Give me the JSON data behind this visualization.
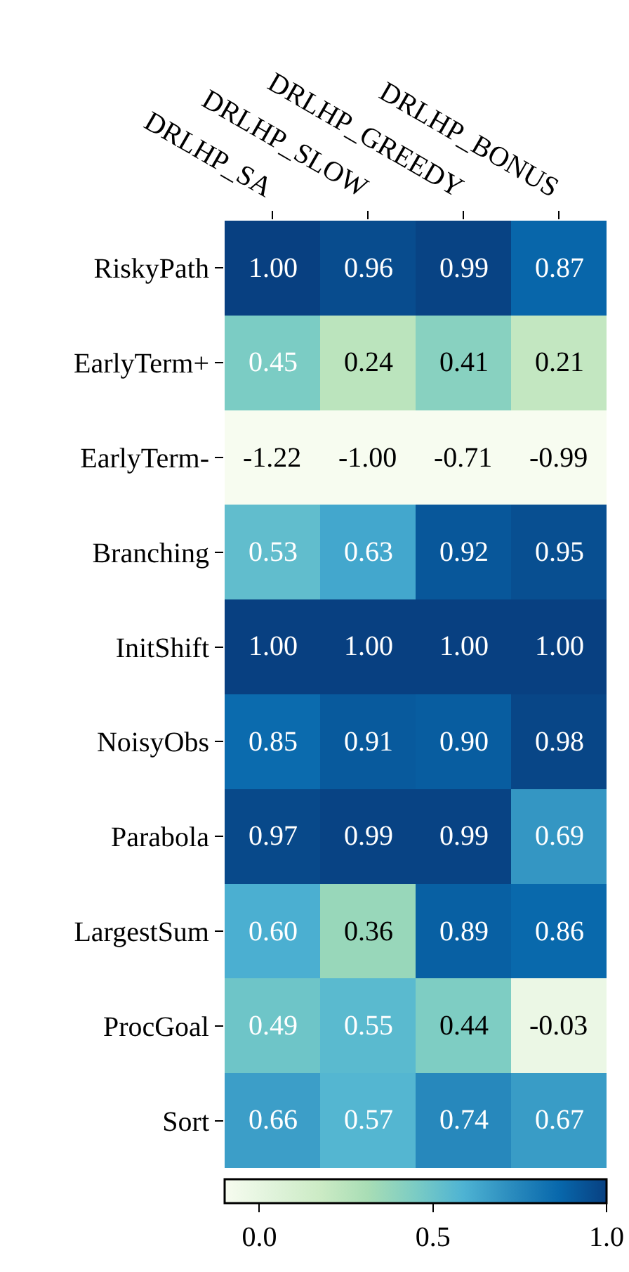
{
  "chart_data": {
    "type": "heatmap",
    "categories": [
      "DRLHP_SA",
      "DRLHP_SLOW",
      "DRLHP_GREEDY",
      "DRLHP_BONUS"
    ],
    "y_categories": [
      "RiskyPath",
      "EarlyTerm+",
      "EarlyTerm-",
      "Branching",
      "InitShift",
      "NoisyObs",
      "Parabola",
      "LargestSum",
      "ProcGoal",
      "Sort"
    ],
    "cells": [
      [
        1.0,
        0.96,
        0.99,
        0.87
      ],
      [
        0.45,
        0.24,
        0.41,
        0.21
      ],
      [
        -1.22,
        -1.0,
        -0.71,
        -0.99
      ],
      [
        0.53,
        0.63,
        0.92,
        0.95
      ],
      [
        1.0,
        1.0,
        1.0,
        1.0
      ],
      [
        0.85,
        0.91,
        0.9,
        0.98
      ],
      [
        0.97,
        0.99,
        0.99,
        0.69
      ],
      [
        0.6,
        0.36,
        0.89,
        0.86
      ],
      [
        0.49,
        0.55,
        0.44,
        -0.03
      ],
      [
        0.66,
        0.57,
        0.74,
        0.67
      ]
    ],
    "cell_labels": [
      [
        "1.00",
        "0.96",
        "0.99",
        "0.87"
      ],
      [
        "0.45",
        "0.24",
        "0.41",
        "0.21"
      ],
      [
        "-1.22",
        "-1.00",
        "-0.71",
        "-0.99"
      ],
      [
        "0.53",
        "0.63",
        "0.92",
        "0.95"
      ],
      [
        "1.00",
        "1.00",
        "1.00",
        "1.00"
      ],
      [
        "0.85",
        "0.91",
        "0.90",
        "0.98"
      ],
      [
        "0.97",
        "0.99",
        "0.99",
        "0.69"
      ],
      [
        "0.60",
        "0.36",
        "0.89",
        "0.86"
      ],
      [
        "0.49",
        "0.55",
        "0.44",
        "-0.03"
      ],
      [
        "0.66",
        "0.57",
        "0.74",
        "0.67"
      ]
    ],
    "clim": [
      -0.1,
      1.0
    ],
    "cticks": [
      {
        "value": 0,
        "label": "0.0"
      },
      {
        "value": 0.5,
        "label": "0.5"
      },
      {
        "value": 1,
        "label": "1.0"
      }
    ]
  }
}
